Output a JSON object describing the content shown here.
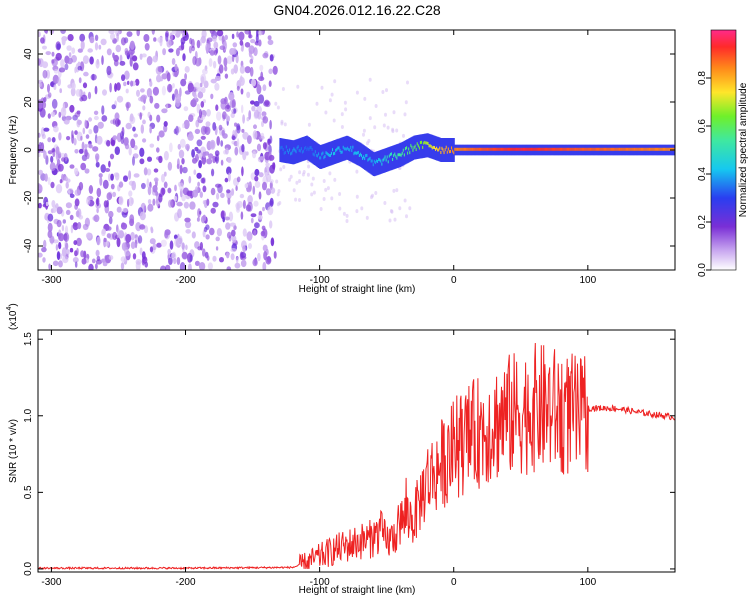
{
  "title": "GN04.2026.012.16.22.C28",
  "colors": {
    "noise": "#7a2fd6",
    "signal_low": "#2a3ef0",
    "signal_mid": "#3fe8a0",
    "signal_high": "#ff2a2a",
    "snr_line": "#ee2222"
  },
  "chart_data": [
    {
      "type": "heatmap",
      "title": "GN04.2026.012.16.22.C28",
      "xlabel": "Height of straight line (km)",
      "ylabel": "Frequency (Hz)",
      "xlim": [
        -310,
        165
      ],
      "ylim": [
        -50,
        50
      ],
      "xticks": [
        -300,
        -200,
        -100,
        0,
        100
      ],
      "yticks": [
        -40,
        -20,
        0,
        20,
        40
      ],
      "colorbar": {
        "label": "Normalized spectral amplitude",
        "range": [
          0,
          1
        ],
        "ticks": [
          "0.0",
          "0.2",
          "0.4",
          "0.6",
          "0.8"
        ],
        "tick_values": [
          0.0,
          0.2,
          0.4,
          0.6,
          0.8
        ]
      },
      "noise_region_x": [
        -310,
        -133
      ],
      "signal_trace": {
        "x": [
          -130,
          -120,
          -110,
          -100,
          -90,
          -80,
          -70,
          -60,
          -50,
          -40,
          -30,
          -20,
          -10,
          0,
          20,
          50,
          90,
          165
        ],
        "freq": [
          0,
          -1,
          1,
          -3,
          -1,
          1,
          -2,
          -6,
          -4,
          -2,
          1,
          2,
          0,
          0,
          0,
          0,
          0,
          0
        ],
        "amplitude": [
          0.35,
          0.4,
          0.35,
          0.4,
          0.45,
          0.4,
          0.45,
          0.4,
          0.5,
          0.55,
          0.6,
          0.7,
          0.8,
          0.85,
          0.9,
          0.95,
          0.9,
          0.85
        ]
      }
    },
    {
      "type": "line",
      "xlabel": "Height of straight line (km)",
      "ylabel": "SNR (10 * v/v)",
      "y_multiplier": "(x10",
      "y_multiplier_exp": "4",
      "y_multiplier_close": ")",
      "xlim": [
        -310,
        165
      ],
      "ylim": [
        -0.02,
        1.56
      ],
      "xticks": [
        -300,
        -200,
        -100,
        0,
        100
      ],
      "yticks": [
        "0.0",
        "0.5",
        "1.0",
        "1.5"
      ],
      "ytick_values": [
        0.0,
        0.5,
        1.0,
        1.5
      ],
      "series": [
        {
          "x": [
            -310,
            -200,
            -120,
            -110,
            -100,
            -90,
            -80,
            -70,
            -60,
            -55,
            -50,
            -45,
            -40,
            -35,
            -30,
            -25,
            -20,
            -15,
            -10,
            -5,
            0,
            10,
            20,
            30,
            40,
            50,
            60,
            70,
            80,
            90,
            95,
            100,
            120,
            140,
            165
          ],
          "values": [
            0.005,
            0.005,
            0.01,
            0.04,
            0.08,
            0.12,
            0.15,
            0.18,
            0.2,
            0.25,
            0.18,
            0.2,
            0.3,
            0.35,
            0.32,
            0.45,
            0.58,
            0.62,
            0.68,
            0.72,
            0.78,
            0.85,
            0.9,
            0.95,
            1.0,
            1.02,
            1.05,
            1.05,
            1.02,
            1.0,
            0.98,
            1.05,
            1.05,
            1.02,
            0.99
          ]
        }
      ]
    }
  ]
}
